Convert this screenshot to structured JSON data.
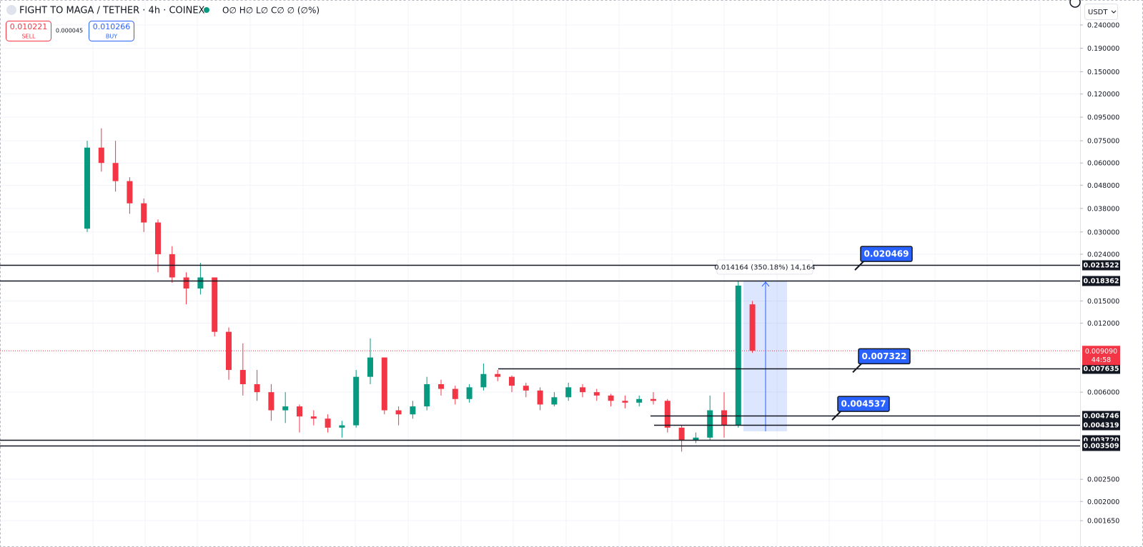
{
  "header": {
    "symbol": "FIGHT TO MAGA / TETHER · 4h · COINEX",
    "ohlc": "O∅ H∅ L∅ C∅ ∅ (∅%)",
    "sell": {
      "price": "0.010221",
      "label": "SELL"
    },
    "spread": "0.000045",
    "buy": {
      "price": "0.010266",
      "label": "BUY"
    },
    "currency": "USDT"
  },
  "chart_data": {
    "type": "candlestick",
    "log_scale": true,
    "grid": true,
    "up_color": "#089981",
    "down_color": "#f23645",
    "ylim": [
      0.0014,
      0.3085
    ],
    "yticks": [
      {
        "value": 0.24,
        "label": "0.240000"
      },
      {
        "value": 0.19,
        "label": "0.190000"
      },
      {
        "value": 0.15,
        "label": "0.150000"
      },
      {
        "value": 0.12,
        "label": "0.120000"
      },
      {
        "value": 0.095,
        "label": "0.095000"
      },
      {
        "value": 0.075,
        "label": "0.075000"
      },
      {
        "value": 0.06,
        "label": "0.060000"
      },
      {
        "value": 0.048,
        "label": "0.048000"
      },
      {
        "value": 0.038,
        "label": "0.038000"
      },
      {
        "value": 0.03,
        "label": "0.030000"
      },
      {
        "value": 0.024,
        "label": "0.024000"
      },
      {
        "value": 0.015,
        "label": "0.015000"
      },
      {
        "value": 0.012,
        "label": "0.012000"
      },
      {
        "value": 0.006,
        "label": "0.006000"
      },
      {
        "value": 0.0025,
        "label": "0.002500"
      },
      {
        "value": 0.002,
        "label": "0.002000"
      },
      {
        "value": 0.00165,
        "label": "0.001650"
      }
    ],
    "candles": [
      {
        "open": 0.031,
        "high": 0.075,
        "low": 0.03,
        "close": 0.07
      },
      {
        "open": 0.07,
        "high": 0.085,
        "low": 0.055,
        "close": 0.06
      },
      {
        "open": 0.06,
        "high": 0.075,
        "low": 0.045,
        "close": 0.05
      },
      {
        "open": 0.05,
        "high": 0.052,
        "low": 0.036,
        "close": 0.04
      },
      {
        "open": 0.04,
        "high": 0.042,
        "low": 0.03,
        "close": 0.033
      },
      {
        "open": 0.033,
        "high": 0.034,
        "low": 0.02,
        "close": 0.024
      },
      {
        "open": 0.024,
        "high": 0.026,
        "low": 0.018,
        "close": 0.019
      },
      {
        "open": 0.019,
        "high": 0.02,
        "low": 0.0145,
        "close": 0.017
      },
      {
        "open": 0.017,
        "high": 0.022,
        "low": 0.016,
        "close": 0.019
      },
      {
        "open": 0.019,
        "high": 0.019,
        "low": 0.0105,
        "close": 0.011
      },
      {
        "open": 0.011,
        "high": 0.0115,
        "low": 0.0068,
        "close": 0.0075
      },
      {
        "open": 0.0075,
        "high": 0.0098,
        "low": 0.0058,
        "close": 0.0065
      },
      {
        "open": 0.0065,
        "high": 0.0075,
        "low": 0.0055,
        "close": 0.006
      },
      {
        "open": 0.006,
        "high": 0.0065,
        "low": 0.0045,
        "close": 0.005
      },
      {
        "open": 0.005,
        "high": 0.006,
        "low": 0.0044,
        "close": 0.0052
      },
      {
        "open": 0.0052,
        "high": 0.0053,
        "low": 0.004,
        "close": 0.0047
      },
      {
        "open": 0.0047,
        "high": 0.005,
        "low": 0.0043,
        "close": 0.0046
      },
      {
        "open": 0.0046,
        "high": 0.0048,
        "low": 0.004,
        "close": 0.0042
      },
      {
        "open": 0.0042,
        "high": 0.0045,
        "low": 0.0038,
        "close": 0.0043
      },
      {
        "open": 0.0043,
        "high": 0.0075,
        "low": 0.0042,
        "close": 0.007
      },
      {
        "open": 0.007,
        "high": 0.0103,
        "low": 0.0065,
        "close": 0.0085
      },
      {
        "open": 0.0085,
        "high": 0.0085,
        "low": 0.0048,
        "close": 0.005
      },
      {
        "open": 0.005,
        "high": 0.0052,
        "low": 0.0043,
        "close": 0.0048
      },
      {
        "open": 0.0048,
        "high": 0.0055,
        "low": 0.0046,
        "close": 0.0052
      },
      {
        "open": 0.0052,
        "high": 0.007,
        "low": 0.005,
        "close": 0.0065
      },
      {
        "open": 0.0065,
        "high": 0.0068,
        "low": 0.0058,
        "close": 0.0062
      },
      {
        "open": 0.0062,
        "high": 0.0064,
        "low": 0.0053,
        "close": 0.0056
      },
      {
        "open": 0.0056,
        "high": 0.0065,
        "low": 0.0054,
        "close": 0.0063
      },
      {
        "open": 0.0063,
        "high": 0.008,
        "low": 0.0061,
        "close": 0.0072
      },
      {
        "open": 0.0072,
        "high": 0.0075,
        "low": 0.0067,
        "close": 0.007
      },
      {
        "open": 0.007,
        "high": 0.0071,
        "low": 0.006,
        "close": 0.0064
      },
      {
        "open": 0.0064,
        "high": 0.0066,
        "low": 0.0057,
        "close": 0.0061
      },
      {
        "open": 0.0061,
        "high": 0.0063,
        "low": 0.005,
        "close": 0.0053
      },
      {
        "open": 0.0053,
        "high": 0.006,
        "low": 0.0052,
        "close": 0.0057
      },
      {
        "open": 0.0057,
        "high": 0.0066,
        "low": 0.0055,
        "close": 0.0063
      },
      {
        "open": 0.0063,
        "high": 0.0065,
        "low": 0.0057,
        "close": 0.006
      },
      {
        "open": 0.006,
        "high": 0.0062,
        "low": 0.0055,
        "close": 0.0058
      },
      {
        "open": 0.0058,
        "high": 0.0059,
        "low": 0.0052,
        "close": 0.0055
      },
      {
        "open": 0.0055,
        "high": 0.0058,
        "low": 0.0051,
        "close": 0.0054
      },
      {
        "open": 0.0054,
        "high": 0.0058,
        "low": 0.0052,
        "close": 0.0056
      },
      {
        "open": 0.0056,
        "high": 0.006,
        "low": 0.0053,
        "close": 0.0055
      },
      {
        "open": 0.0055,
        "high": 0.0056,
        "low": 0.004,
        "close": 0.0042
      },
      {
        "open": 0.0042,
        "high": 0.0043,
        "low": 0.0033,
        "close": 0.0037
      },
      {
        "open": 0.0037,
        "high": 0.004,
        "low": 0.0036,
        "close": 0.0038
      },
      {
        "open": 0.0038,
        "high": 0.0058,
        "low": 0.0037,
        "close": 0.005
      },
      {
        "open": 0.005,
        "high": 0.006,
        "low": 0.0038,
        "close": 0.0043
      },
      {
        "open": 0.0043,
        "high": 0.0184,
        "low": 0.0042,
        "close": 0.0175
      },
      {
        "open": 0.0145,
        "high": 0.015,
        "low": 0.0089,
        "close": 0.0091
      }
    ],
    "levels": [
      0.021522,
      0.018362,
      0.007635,
      0.004746,
      0.004319,
      {
        "value": 0.00372,
        "label": "0.003720"
      },
      0.003509
    ],
    "current_price": {
      "value": 0.00909,
      "label": "0.009090",
      "countdown": "44:58"
    },
    "callouts": [
      0.020469,
      0.007322,
      0.004537
    ],
    "measure": {
      "label": "0.014164 (350.18%) 14,164"
    }
  }
}
